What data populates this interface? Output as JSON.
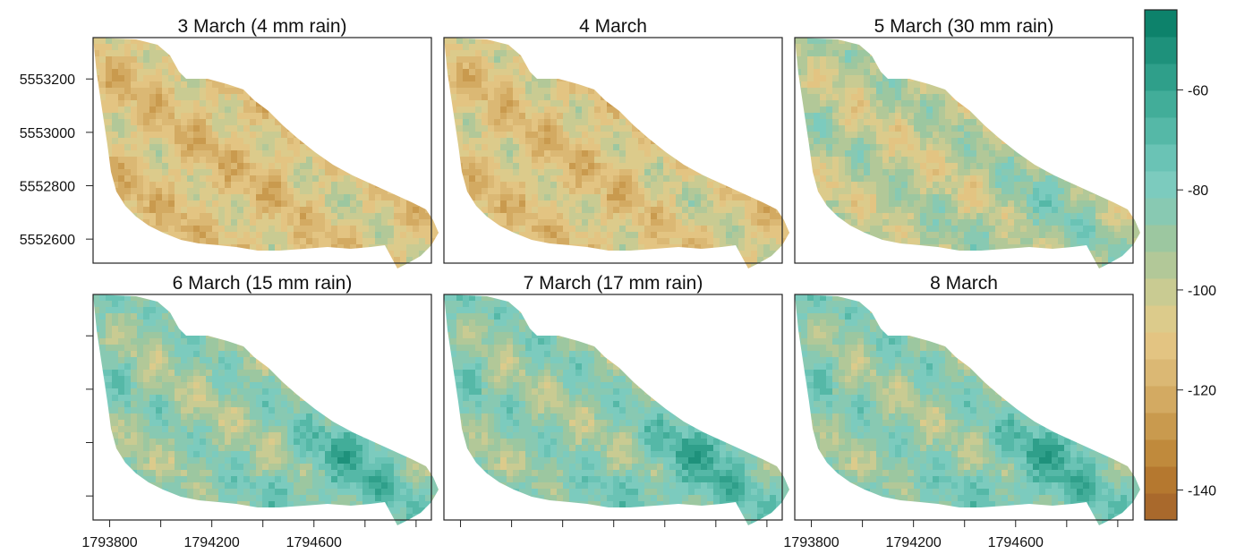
{
  "chart_data": {
    "type": "heatmap",
    "panels": [
      {
        "title": "3 March (4 mm rain)"
      },
      {
        "title": "4 March"
      },
      {
        "title": "5 March (30 mm rain)"
      },
      {
        "title": "6 March (15 mm rain)"
      },
      {
        "title": "7 March (17 mm rain)"
      },
      {
        "title": "8 March"
      }
    ],
    "y_ticks": [
      {
        "value": 5553200,
        "label": "5553200"
      },
      {
        "value": 5553000,
        "label": "5553000"
      },
      {
        "value": 5552800,
        "label": "5552800"
      },
      {
        "value": 5552600,
        "label": "5552600"
      }
    ],
    "x_ticks": [
      {
        "value": 1793800,
        "label": "1793800"
      },
      {
        "value": 1794000,
        "label": ""
      },
      {
        "value": 1794200,
        "label": "1794200"
      },
      {
        "value": 1794400,
        "label": ""
      },
      {
        "value": 1794600,
        "label": "1794600"
      },
      {
        "value": 1794800,
        "label": ""
      },
      {
        "value": 1795000,
        "label": ""
      }
    ],
    "xlim": [
      1793735,
      1795060
    ],
    "ylim": [
      5552510,
      5553355
    ],
    "colorbar": {
      "range": [
        -146,
        -44
      ],
      "ticks": [
        -60,
        -80,
        -100,
        -120,
        -140
      ],
      "colors_low_to_high": [
        "#a9692c",
        "#b5782f",
        "#c08a3c",
        "#c99a4e",
        "#d3aa62",
        "#dbb874",
        "#e3c482",
        "#dccb8b",
        "#c9cb92",
        "#b2c898",
        "#9cc7a0",
        "#88c9b2",
        "#7ccbbe",
        "#6ac3b5",
        "#55b8a7",
        "#42ad99",
        "#2f9f8a",
        "#1e917b",
        "#0d826b"
      ]
    },
    "panel_mean_values": [
      -111,
      -110,
      -98,
      -89,
      -88,
      -88
    ]
  }
}
